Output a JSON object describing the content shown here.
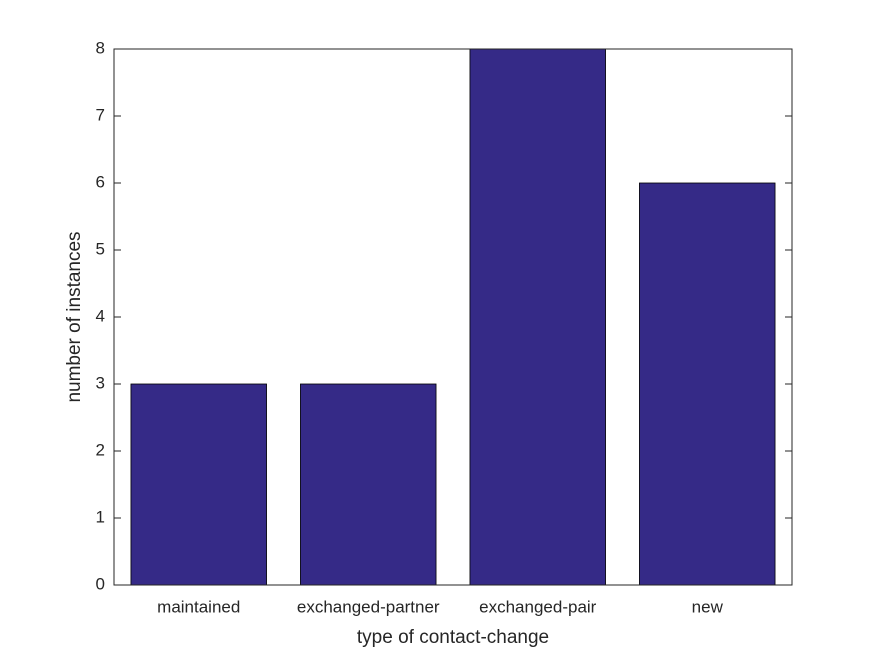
{
  "chart_data": {
    "type": "bar",
    "categories": [
      "maintained",
      "exchanged-partner",
      "exchanged-pair",
      "new"
    ],
    "values": [
      3,
      3,
      8,
      6
    ],
    "color": "#352a87",
    "xlabel": "type of contact-change",
    "ylabel": "number of instances",
    "ylim": [
      0,
      8
    ],
    "yticks": [
      0,
      1,
      2,
      3,
      4,
      5,
      6,
      7,
      8
    ]
  }
}
